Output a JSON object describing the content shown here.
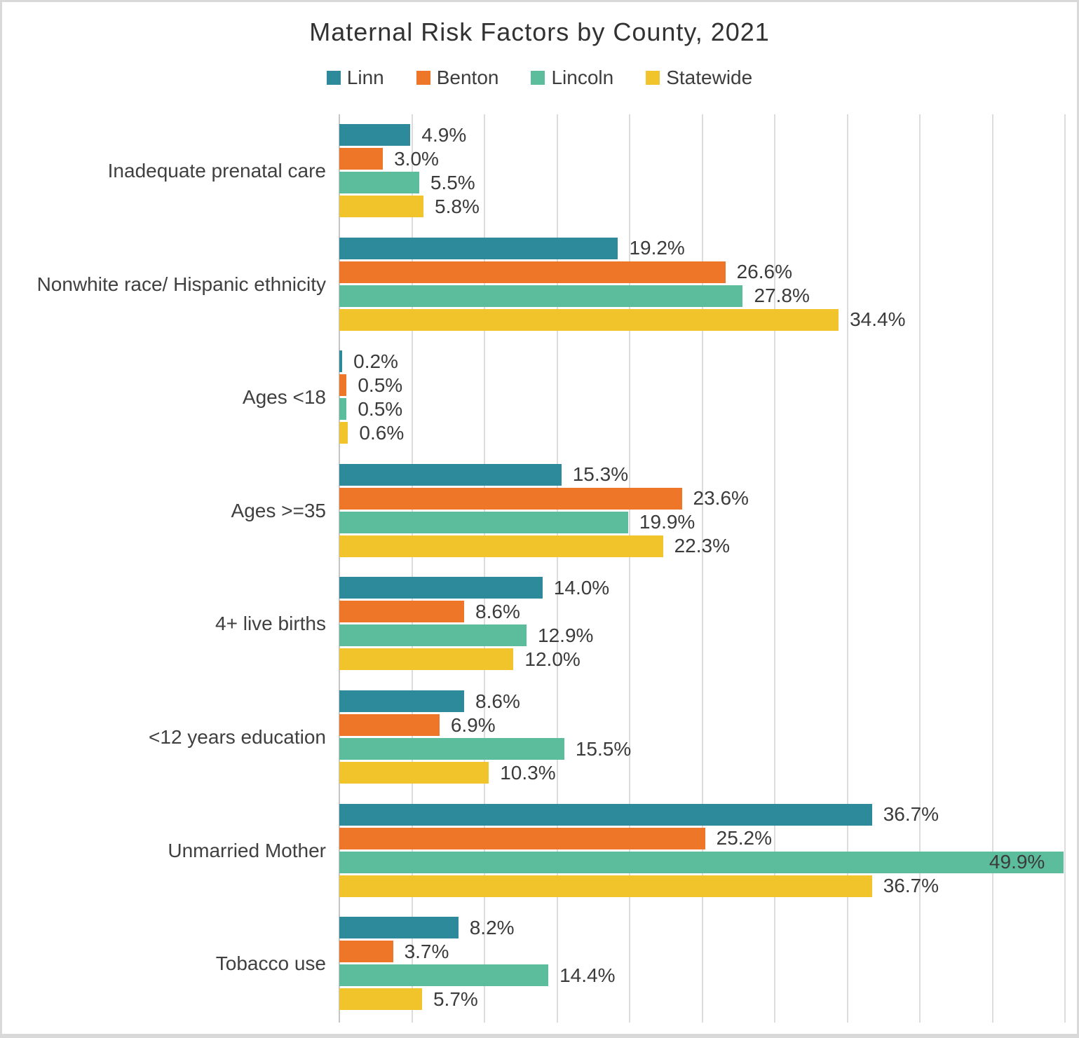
{
  "chart_data": {
    "type": "bar",
    "orientation": "horizontal",
    "title": "Maternal Risk Factors by County, 2021",
    "categories": [
      "Inadequate prenatal care",
      "Nonwhite race/ Hispanic ethnicity",
      "Ages <18",
      "Ages >=35",
      "4+ live births",
      "<12 years education",
      "Unmarried Mother",
      "Tobacco use"
    ],
    "series": [
      {
        "name": "Linn",
        "color": "#2d8a9b",
        "values": [
          4.9,
          19.2,
          0.2,
          15.3,
          14.0,
          8.6,
          36.7,
          8.2
        ]
      },
      {
        "name": "Benton",
        "color": "#ed7628",
        "values": [
          3.0,
          26.6,
          0.5,
          23.6,
          8.6,
          6.9,
          25.2,
          3.7
        ]
      },
      {
        "name": "Lincoln",
        "color": "#5cbd9c",
        "values": [
          5.5,
          27.8,
          0.5,
          19.9,
          12.9,
          15.5,
          49.9,
          14.4
        ]
      },
      {
        "name": "Statewide",
        "color": "#f2c42c",
        "values": [
          5.8,
          34.4,
          0.6,
          22.3,
          12.0,
          10.3,
          36.7,
          5.7
        ]
      }
    ],
    "value_label_format": "one_decimal_percent",
    "xlim": [
      0,
      50
    ],
    "gridline_step": 5,
    "grid": true,
    "x_tick_labels_visible": false,
    "legend_position": "top",
    "data_labels": true
  },
  "style": {
    "frame_border_color": "#d9d9d9",
    "gridline_color": "#dcdcdc",
    "axis_line_color": "#c6c6c6",
    "text_color": "#3d3d3d",
    "title_color": "#323232",
    "background": "#ffffff"
  }
}
